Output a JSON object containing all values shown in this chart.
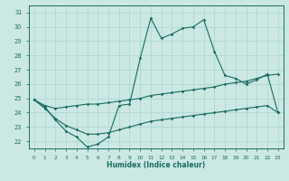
{
  "xlabel": "Humidex (Indice chaleur)",
  "xlim": [
    -0.5,
    23.5
  ],
  "ylim": [
    21.5,
    31.5
  ],
  "yticks": [
    22,
    23,
    24,
    25,
    26,
    27,
    28,
    29,
    30,
    31
  ],
  "xticks": [
    0,
    1,
    2,
    3,
    4,
    5,
    6,
    7,
    8,
    9,
    10,
    11,
    12,
    13,
    14,
    15,
    16,
    17,
    18,
    19,
    20,
    21,
    22,
    23
  ],
  "bg_color": "#cbe8e3",
  "line_color": "#1a6b60",
  "grid_color": "#b0d8d2",
  "line1_y": [
    24.9,
    24.4,
    23.5,
    22.7,
    22.3,
    21.6,
    21.8,
    22.3,
    24.5,
    24.6,
    27.8,
    30.6,
    29.2,
    29.5,
    29.9,
    30.0,
    30.5,
    28.3,
    26.6,
    26.4,
    26.0,
    26.3,
    26.7,
    24.0
  ],
  "line2_y": [
    24.9,
    24.5,
    24.3,
    24.4,
    24.5,
    24.6,
    24.6,
    24.7,
    24.8,
    24.9,
    25.0,
    25.2,
    25.3,
    25.4,
    25.5,
    25.6,
    25.7,
    25.8,
    26.0,
    26.1,
    26.2,
    26.4,
    26.6,
    26.7
  ],
  "line3_y": [
    24.9,
    24.3,
    23.6,
    23.1,
    22.8,
    22.5,
    22.5,
    22.6,
    22.8,
    23.0,
    23.2,
    23.4,
    23.5,
    23.6,
    23.7,
    23.8,
    23.9,
    24.0,
    24.1,
    24.2,
    24.3,
    24.4,
    24.5,
    24.0
  ]
}
